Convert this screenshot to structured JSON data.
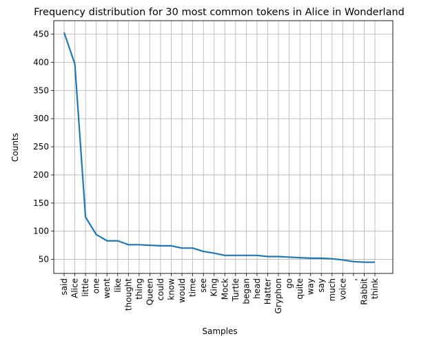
{
  "chart_data": {
    "type": "line",
    "title": "Frequency distribution for 30 most common tokens in Alice in Wonderland",
    "xlabel": "Samples",
    "ylabel": "Counts",
    "categories": [
      "said",
      "Alice",
      "little",
      "one",
      "went",
      "like",
      "thought",
      "thing",
      "Queen",
      "could",
      "know",
      "would",
      "time",
      "see",
      "King",
      "Mock",
      "Turtle",
      "began",
      "head",
      "Hatter",
      "Gryphon",
      "go",
      "quite",
      "way",
      "say",
      "much",
      "voice",
      ",",
      "Rabbit",
      "think"
    ],
    "values": [
      453,
      397,
      125,
      94,
      83,
      83,
      76,
      76,
      75,
      74,
      74,
      70,
      70,
      64,
      61,
      57,
      57,
      57,
      57,
      55,
      55,
      54,
      53,
      52,
      52,
      51,
      49,
      46,
      45,
      45
    ],
    "yticks": [
      50,
      100,
      150,
      200,
      250,
      300,
      350,
      400,
      450
    ],
    "ylim": [
      25,
      474
    ],
    "grid": true,
    "line_color": "#1f77b4",
    "grid_color": "#b0b0b0"
  }
}
